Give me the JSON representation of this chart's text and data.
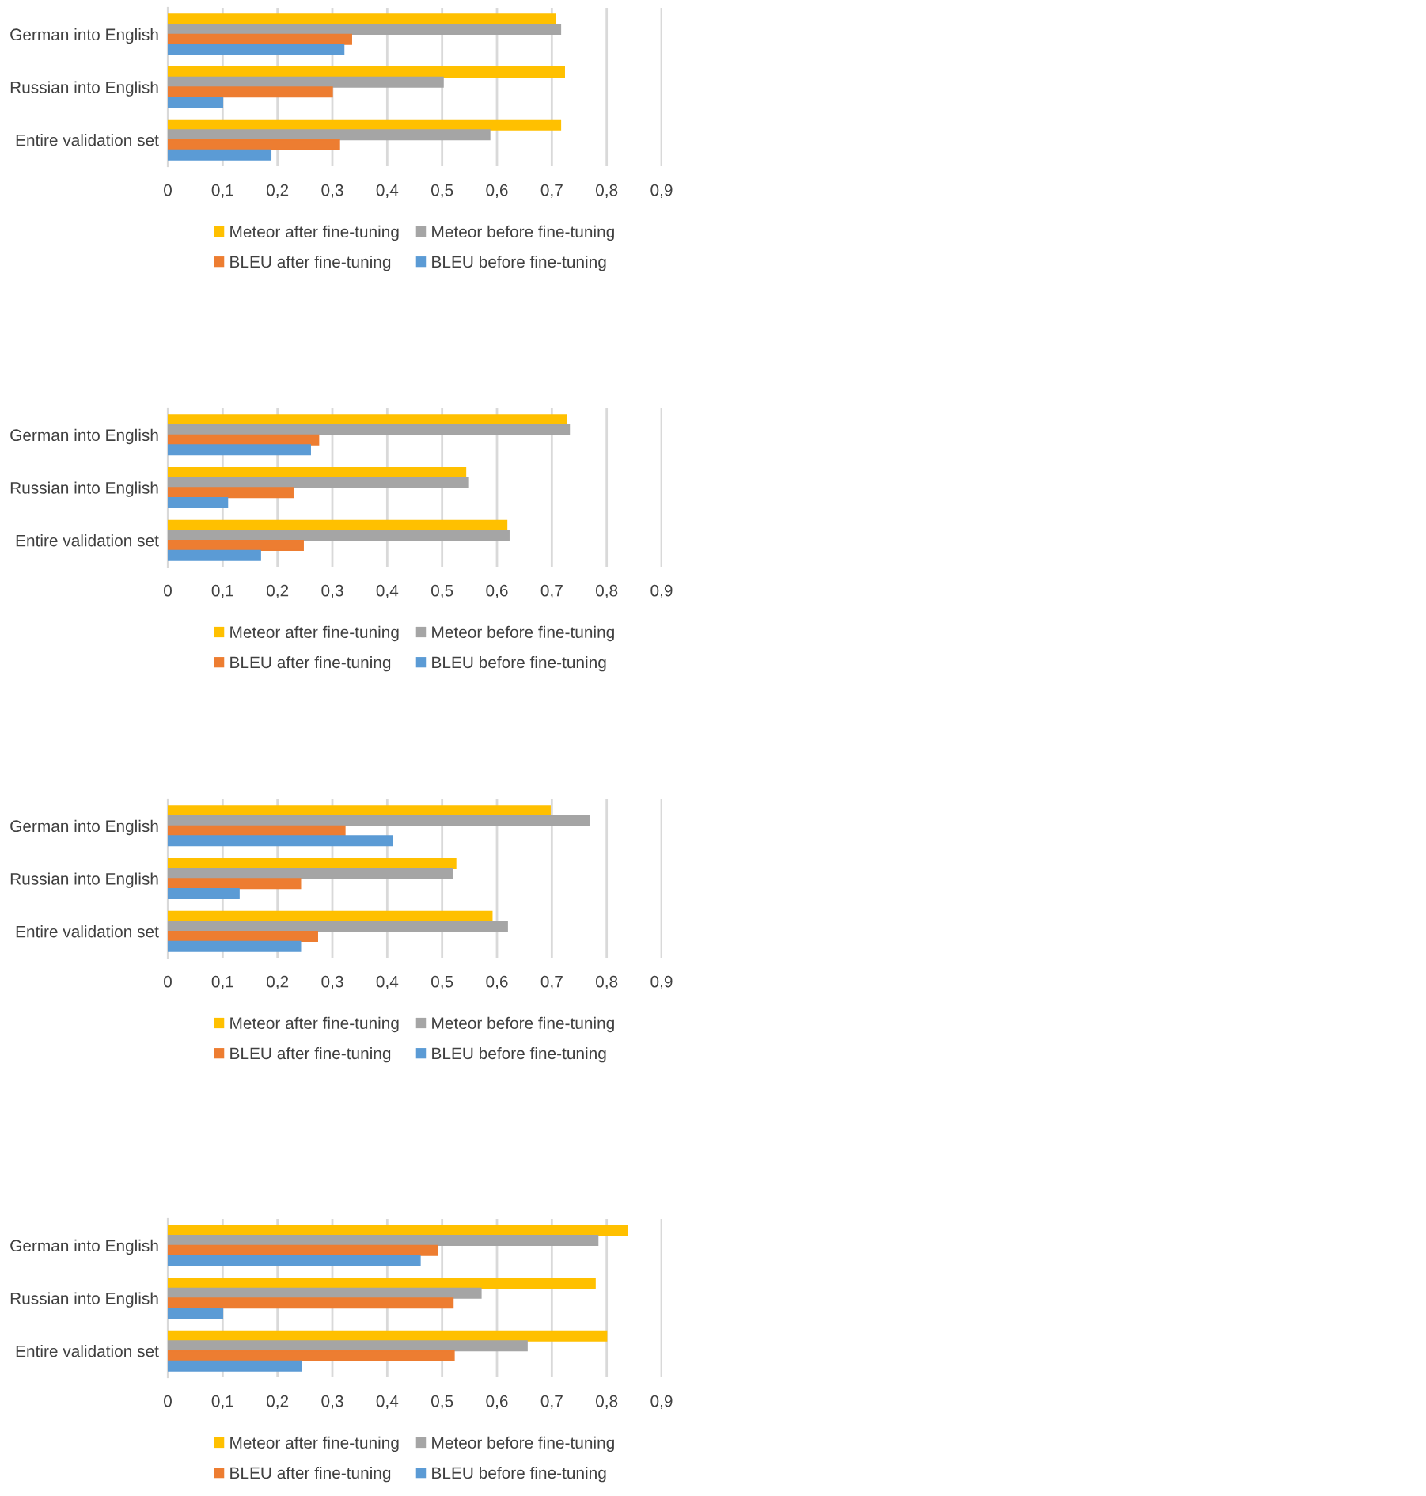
{
  "chart_data": [
    {
      "type": "bar",
      "orientation": "horizontal",
      "categories": [
        "German into English",
        "Russian into English",
        "Entire validation set"
      ],
      "series": [
        {
          "name": "Meteor after fine-tuning",
          "color": "#ffc000",
          "values": [
            0.706,
            0.723,
            0.716
          ]
        },
        {
          "name": "Meteor before fine-tuning",
          "color": "#a5a5a5",
          "values": [
            0.716,
            0.502,
            0.587
          ]
        },
        {
          "name": "BLEU after fine-tuning",
          "color": "#ed7d31",
          "values": [
            0.335,
            0.3,
            0.313
          ]
        },
        {
          "name": "BLEU before fine-tuning",
          "color": "#5b9bd5",
          "values": [
            0.321,
            0.1,
            0.188
          ]
        }
      ],
      "xlim": [
        0,
        0.9
      ],
      "xticks": [
        0,
        {
          "value": 0.1,
          "label": "0,1"
        },
        {
          "value": 0.2,
          "label": "0,2"
        },
        {
          "value": 0.3,
          "label": "0,3"
        },
        {
          "value": 0.4,
          "label": "0,4"
        },
        {
          "value": 0.5,
          "label": "0,5"
        },
        {
          "value": 0.6,
          "label": "0,6"
        },
        {
          "value": 0.7,
          "label": "0,7"
        },
        {
          "value": 0.8,
          "label": "0,8"
        },
        {
          "value": 0.9,
          "label": "0,9"
        }
      ],
      "grid": "x",
      "legend": "bottom"
    },
    {
      "type": "bar",
      "orientation": "horizontal",
      "categories": [
        "German into English",
        "Russian into English",
        "Entire validation set"
      ],
      "series": [
        {
          "name": "Meteor after fine-tuning",
          "color": "#ffc000",
          "values": [
            0.726,
            0.543,
            0.618
          ]
        },
        {
          "name": "Meteor before fine-tuning",
          "color": "#a5a5a5",
          "values": [
            0.732,
            0.548,
            0.622
          ]
        },
        {
          "name": "BLEU after fine-tuning",
          "color": "#ed7d31",
          "values": [
            0.275,
            0.229,
            0.247
          ]
        },
        {
          "name": "BLEU before fine-tuning",
          "color": "#5b9bd5",
          "values": [
            0.26,
            0.109,
            0.169
          ]
        }
      ],
      "xlim": [
        0,
        0.9
      ],
      "xticks": [
        0,
        {
          "value": 0.1,
          "label": "0,1"
        },
        {
          "value": 0.2,
          "label": "0,2"
        },
        {
          "value": 0.3,
          "label": "0,3"
        },
        {
          "value": 0.4,
          "label": "0,4"
        },
        {
          "value": 0.5,
          "label": "0,5"
        },
        {
          "value": 0.6,
          "label": "0,6"
        },
        {
          "value": 0.7,
          "label": "0,7"
        },
        {
          "value": 0.8,
          "label": "0,8"
        },
        {
          "value": 0.9,
          "label": "0,9"
        }
      ],
      "grid": "x",
      "legend": "bottom"
    },
    {
      "type": "bar",
      "orientation": "horizontal",
      "categories": [
        "German into English",
        "Russian into English",
        "Entire validation set"
      ],
      "series": [
        {
          "name": "Meteor after fine-tuning",
          "color": "#ffc000",
          "values": [
            0.697,
            0.525,
            0.591
          ]
        },
        {
          "name": "Meteor before fine-tuning",
          "color": "#a5a5a5",
          "values": [
            0.768,
            0.519,
            0.619
          ]
        },
        {
          "name": "BLEU after fine-tuning",
          "color": "#ed7d31",
          "values": [
            0.323,
            0.242,
            0.273
          ]
        },
        {
          "name": "BLEU before fine-tuning",
          "color": "#5b9bd5",
          "values": [
            0.41,
            0.13,
            0.242
          ]
        }
      ],
      "xlim": [
        0,
        0.9
      ],
      "xticks": [
        0,
        {
          "value": 0.1,
          "label": "0,1"
        },
        {
          "value": 0.2,
          "label": "0,2"
        },
        {
          "value": 0.3,
          "label": "0,3"
        },
        {
          "value": 0.4,
          "label": "0,4"
        },
        {
          "value": 0.5,
          "label": "0,5"
        },
        {
          "value": 0.6,
          "label": "0,6"
        },
        {
          "value": 0.7,
          "label": "0,7"
        },
        {
          "value": 0.8,
          "label": "0,8"
        },
        {
          "value": 0.9,
          "label": "0,9"
        }
      ],
      "grid": "x",
      "legend": "bottom"
    },
    {
      "type": "bar",
      "orientation": "horizontal",
      "categories": [
        "German into English",
        "Russian into English",
        "Entire validation set"
      ],
      "series": [
        {
          "name": "Meteor after fine-tuning",
          "color": "#ffc000",
          "values": [
            0.837,
            0.779,
            0.8
          ]
        },
        {
          "name": "Meteor before fine-tuning",
          "color": "#a5a5a5",
          "values": [
            0.784,
            0.571,
            0.655
          ]
        },
        {
          "name": "BLEU after fine-tuning",
          "color": "#ed7d31",
          "values": [
            0.491,
            0.52,
            0.522
          ]
        },
        {
          "name": "BLEU before fine-tuning",
          "color": "#5b9bd5",
          "values": [
            0.46,
            0.1,
            0.243
          ]
        }
      ],
      "xlim": [
        0,
        0.9
      ],
      "xticks": [
        0,
        {
          "value": 0.1,
          "label": "0,1"
        },
        {
          "value": 0.2,
          "label": "0,2"
        },
        {
          "value": 0.3,
          "label": "0,3"
        },
        {
          "value": 0.4,
          "label": "0,4"
        },
        {
          "value": 0.5,
          "label": "0,5"
        },
        {
          "value": 0.6,
          "label": "0,6"
        },
        {
          "value": 0.7,
          "label": "0,7"
        },
        {
          "value": 0.8,
          "label": "0,8"
        },
        {
          "value": 0.9,
          "label": "0,9"
        }
      ],
      "grid": "x",
      "legend": "bottom"
    }
  ]
}
